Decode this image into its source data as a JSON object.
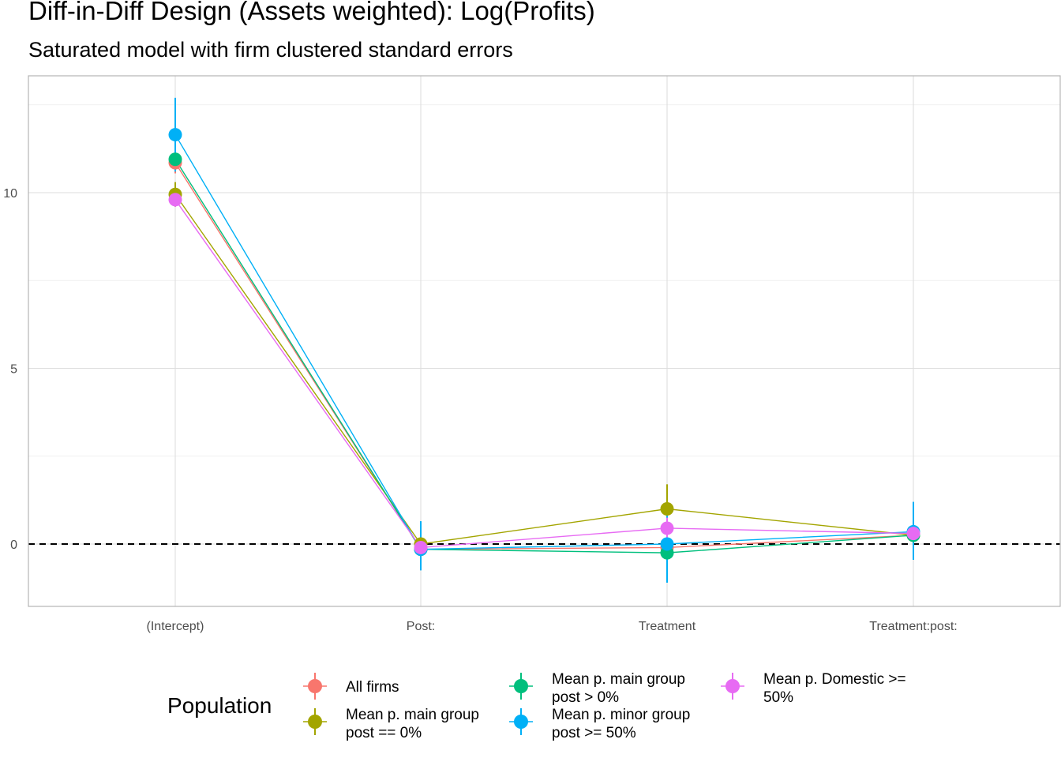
{
  "title": "Diff-in-Diff Design (Assets weighted): Log(Profits)",
  "subtitle": "Saturated model with firm clustered standard errors",
  "chart_data": {
    "type": "line",
    "categories": [
      "(Intercept)",
      "Post:",
      "Treatment",
      "Treatment:post:"
    ],
    "ylim": [
      -1.8,
      13.0
    ],
    "yticks": [
      0,
      5,
      10
    ],
    "reference_line": 0,
    "grid": true,
    "legend": {
      "title": "Population",
      "placement": "bottom"
    },
    "series": [
      {
        "name": "All firms",
        "color": "#F8766D",
        "values": [
          10.85,
          -0.15,
          -0.1,
          0.25
        ],
        "lower": [
          10.55,
          -0.35,
          -0.3,
          0.05
        ],
        "upper": [
          11.15,
          0.05,
          0.1,
          0.45
        ]
      },
      {
        "name": "Mean p. main group post == 0%",
        "color": "#A3A500",
        "values": [
          9.95,
          0.0,
          1.0,
          0.25
        ],
        "lower": [
          9.6,
          -0.2,
          0.3,
          0.05
        ],
        "upper": [
          10.3,
          0.2,
          1.7,
          0.45
        ]
      },
      {
        "name": "Mean p. main group post > 0%",
        "color": "#00BF7D",
        "values": [
          10.95,
          -0.15,
          -0.25,
          0.25
        ],
        "lower": [
          10.65,
          -0.4,
          -0.55,
          0.05
        ],
        "upper": [
          11.25,
          0.1,
          0.05,
          0.45
        ]
      },
      {
        "name": "Mean p. minor group post >= 50%",
        "color": "#00B0F6",
        "values": [
          11.65,
          -0.15,
          0.0,
          0.35
        ],
        "lower": [
          10.6,
          -0.75,
          -1.1,
          -0.45
        ],
        "upper": [
          12.7,
          0.65,
          1.05,
          1.2
        ]
      },
      {
        "name": "Mean p. Domestic >= 50%",
        "color": "#E76BF3",
        "values": [
          9.8,
          -0.1,
          0.45,
          0.3
        ],
        "lower": [
          9.6,
          -0.3,
          0.15,
          0.1
        ],
        "upper": [
          10.0,
          0.1,
          0.75,
          0.5
        ]
      }
    ]
  }
}
